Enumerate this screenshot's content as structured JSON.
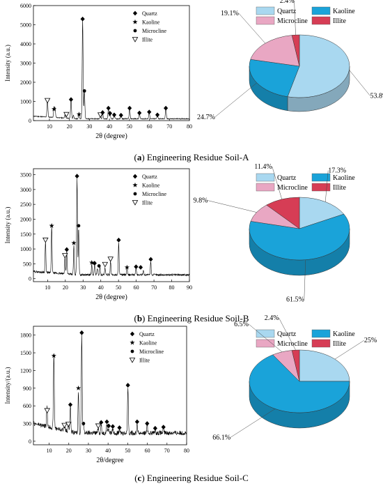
{
  "captions": [
    {
      "letter": "a",
      "text": "Engineering Residue Soil-A"
    },
    {
      "letter": "b",
      "text": "Engineering Residue Soil-B"
    },
    {
      "letter": "c",
      "text": "Engineering Residue Soil-C"
    }
  ],
  "chart_data": [
    {
      "type": "line",
      "panel": "A-xrd",
      "xlabel": "2θ (degree)",
      "ylabel": "Intensity (a.u.)",
      "xlim": [
        2,
        80
      ],
      "ylim": [
        0,
        6000
      ],
      "xticks": [
        10,
        20,
        30,
        40,
        50,
        60,
        70,
        80
      ],
      "yticks": [
        0,
        1000,
        2000,
        3000,
        4000,
        5000,
        6000
      ],
      "legend": [
        "Quartz",
        "Kaoline",
        "Microcline",
        "Illite"
      ],
      "legend_position": "top-right",
      "peaks": [
        [
          9.0,
          1050
        ],
        [
          12.3,
          600
        ],
        [
          12.8,
          580
        ],
        [
          17.8,
          260
        ],
        [
          20.8,
          1100
        ],
        [
          22.0,
          260
        ],
        [
          24.8,
          280
        ],
        [
          26.6,
          5300
        ],
        [
          27.5,
          1550
        ],
        [
          35.5,
          260
        ],
        [
          36.6,
          400
        ],
        [
          39.5,
          650
        ],
        [
          40.3,
          380
        ],
        [
          42.4,
          300
        ],
        [
          45.8,
          280
        ],
        [
          50.1,
          650
        ],
        [
          55.0,
          400
        ],
        [
          59.9,
          450
        ],
        [
          64.0,
          300
        ],
        [
          68.2,
          650
        ]
      ],
      "markers": [
        {
          "x": 9.0,
          "y": 1050,
          "m": "illite"
        },
        {
          "x": 12.3,
          "y": 600,
          "m": "kaoline"
        },
        {
          "x": 18.5,
          "y": 320,
          "m": "illite"
        },
        {
          "x": 20.8,
          "y": 1100,
          "m": "quartz"
        },
        {
          "x": 24.8,
          "y": 330,
          "m": "kaoline"
        },
        {
          "x": 26.6,
          "y": 5300,
          "m": "quartz"
        },
        {
          "x": 27.5,
          "y": 1550,
          "m": "microcline"
        },
        {
          "x": 35.5,
          "y": 300,
          "m": "illite"
        },
        {
          "x": 36.6,
          "y": 420,
          "m": "quartz"
        },
        {
          "x": 39.5,
          "y": 650,
          "m": "quartz"
        },
        {
          "x": 40.3,
          "y": 380,
          "m": "quartz"
        },
        {
          "x": 42.4,
          "y": 300,
          "m": "quartz"
        },
        {
          "x": 45.8,
          "y": 280,
          "m": "quartz"
        },
        {
          "x": 50.1,
          "y": 650,
          "m": "quartz"
        },
        {
          "x": 55.0,
          "y": 400,
          "m": "quartz"
        },
        {
          "x": 59.9,
          "y": 450,
          "m": "quartz"
        },
        {
          "x": 64.0,
          "y": 300,
          "m": "quartz"
        },
        {
          "x": 68.2,
          "y": 650,
          "m": "quartz"
        }
      ]
    },
    {
      "type": "pie",
      "panel": "A-pie",
      "labels": [
        "Quartz",
        "Kaoline",
        "Microcline",
        "Illite"
      ],
      "values": [
        53.8,
        24.7,
        19.1,
        2.4
      ],
      "value_labels": [
        "53.8%",
        "24.7%",
        "19.1%",
        "2.4%"
      ],
      "colors": [
        "#a9d8f0",
        "#1aa3d9",
        "#e9a7c3",
        "#d63d55"
      ],
      "legend_position": "top"
    },
    {
      "type": "line",
      "panel": "B-xrd",
      "xlabel": "2θ (degree)",
      "ylabel": "Intensity (a.u.)",
      "xlim": [
        2,
        90
      ],
      "ylim": [
        -100,
        3700
      ],
      "xticks": [
        10,
        20,
        30,
        40,
        50,
        60,
        70,
        80,
        90
      ],
      "yticks": [
        0,
        500,
        1000,
        1500,
        2000,
        2500,
        3000,
        3500
      ],
      "legend": [
        "Quartz",
        "Kaoline",
        "Microcline",
        "Illite"
      ],
      "legend_position": "top-right",
      "peaks": [
        [
          8.8,
          1200
        ],
        [
          12.3,
          1700
        ],
        [
          19.8,
          700
        ],
        [
          20.8,
          920
        ],
        [
          24.8,
          1100
        ],
        [
          26.6,
          3400
        ],
        [
          27.5,
          1700
        ],
        [
          34.9,
          460
        ],
        [
          36.5,
          500
        ],
        [
          38.0,
          360
        ],
        [
          39.5,
          440
        ],
        [
          42.4,
          350
        ],
        [
          45.5,
          600
        ],
        [
          50.1,
          1250
        ],
        [
          54.8,
          330
        ],
        [
          59.9,
          350
        ],
        [
          64.0,
          300
        ],
        [
          68.2,
          600
        ]
      ],
      "markers": [
        {
          "x": 8.8,
          "y": 1300,
          "m": "illite"
        },
        {
          "x": 12.3,
          "y": 1780,
          "m": "kaoline"
        },
        {
          "x": 19.8,
          "y": 780,
          "m": "illite"
        },
        {
          "x": 20.8,
          "y": 980,
          "m": "quartz"
        },
        {
          "x": 24.8,
          "y": 1200,
          "m": "kaoline"
        },
        {
          "x": 26.6,
          "y": 3450,
          "m": "quartz"
        },
        {
          "x": 27.5,
          "y": 1780,
          "m": "microcline"
        },
        {
          "x": 34.9,
          "y": 540,
          "m": "kaoline"
        },
        {
          "x": 36.5,
          "y": 520,
          "m": "quartz"
        },
        {
          "x": 39.0,
          "y": 430,
          "m": "microcline"
        },
        {
          "x": 42.4,
          "y": 480,
          "m": "illite"
        },
        {
          "x": 45.5,
          "y": 660,
          "m": "illite"
        },
        {
          "x": 50.1,
          "y": 1300,
          "m": "quartz"
        },
        {
          "x": 54.8,
          "y": 380,
          "m": "kaoline"
        },
        {
          "x": 59.9,
          "y": 400,
          "m": "quartz"
        },
        {
          "x": 62.5,
          "y": 380,
          "m": "quartz"
        },
        {
          "x": 68.2,
          "y": 650,
          "m": "quartz"
        }
      ]
    },
    {
      "type": "pie",
      "panel": "B-pie",
      "labels": [
        "Quartz",
        "Kaoline",
        "Microcline",
        "Illite"
      ],
      "values": [
        17.3,
        61.5,
        9.8,
        11.4
      ],
      "value_labels": [
        "17.3%",
        "61.5%",
        "9.8%",
        "11.4%"
      ],
      "colors": [
        "#a9d8f0",
        "#1aa3d9",
        "#e9a7c3",
        "#d63d55"
      ],
      "legend_position": "top"
    },
    {
      "type": "line",
      "panel": "C-xrd",
      "xlabel": "2θ/degree",
      "ylabel": "Intensity/(a.u.)",
      "xlim": [
        2,
        80
      ],
      "ylim": [
        -60,
        1950
      ],
      "xticks": [
        10,
        20,
        30,
        40,
        50,
        60,
        70,
        80
      ],
      "yticks": [
        0,
        300,
        600,
        900,
        1200,
        1500,
        1800
      ],
      "legend": [
        "Quartz",
        "Kaoline",
        "Microcline",
        "Illite"
      ],
      "legend_position": "top-right",
      "peaks": [
        [
          8.9,
          470
        ],
        [
          12.4,
          1400
        ],
        [
          17.8,
          240
        ],
        [
          19.8,
          260
        ],
        [
          20.8,
          580
        ],
        [
          24.9,
          850
        ],
        [
          26.6,
          1820
        ],
        [
          27.5,
          280
        ],
        [
          35.0,
          230
        ],
        [
          36.5,
          290
        ],
        [
          39.4,
          300
        ],
        [
          40.3,
          230
        ],
        [
          42.4,
          220
        ],
        [
          45.8,
          200
        ],
        [
          50.1,
          920
        ],
        [
          54.8,
          300
        ],
        [
          59.9,
          280
        ],
        [
          64.0,
          200
        ],
        [
          68.2,
          220
        ]
      ],
      "markers": [
        {
          "x": 9.0,
          "y": 520,
          "m": "illite"
        },
        {
          "x": 12.4,
          "y": 1450,
          "m": "kaoline"
        },
        {
          "x": 17.8,
          "y": 270,
          "m": "illite"
        },
        {
          "x": 19.8,
          "y": 290,
          "m": "illite"
        },
        {
          "x": 20.8,
          "y": 620,
          "m": "quartz"
        },
        {
          "x": 24.9,
          "y": 900,
          "m": "kaoline"
        },
        {
          "x": 26.6,
          "y": 1840,
          "m": "quartz"
        },
        {
          "x": 27.5,
          "y": 300,
          "m": "microcline"
        },
        {
          "x": 35.0,
          "y": 260,
          "m": "illite"
        },
        {
          "x": 36.5,
          "y": 320,
          "m": "quartz"
        },
        {
          "x": 39.4,
          "y": 330,
          "m": "quartz"
        },
        {
          "x": 40.3,
          "y": 260,
          "m": "quartz"
        },
        {
          "x": 42.4,
          "y": 250,
          "m": "quartz"
        },
        {
          "x": 45.8,
          "y": 230,
          "m": "quartz"
        },
        {
          "x": 50.1,
          "y": 950,
          "m": "quartz"
        },
        {
          "x": 54.8,
          "y": 330,
          "m": "quartz"
        },
        {
          "x": 59.9,
          "y": 300,
          "m": "quartz"
        },
        {
          "x": 64.0,
          "y": 220,
          "m": "quartz"
        },
        {
          "x": 68.2,
          "y": 240,
          "m": "quartz"
        }
      ]
    },
    {
      "type": "pie",
      "panel": "C-pie",
      "labels": [
        "Quartz",
        "Kaoline",
        "Microcline",
        "Illite"
      ],
      "values": [
        25,
        66.1,
        6.5,
        2.4
      ],
      "value_labels": [
        "25%",
        "66.1%",
        "6.5%",
        "2.4%"
      ],
      "colors": [
        "#a9d8f0",
        "#1aa3d9",
        "#e9a7c3",
        "#d63d55"
      ],
      "legend_position": "top"
    }
  ]
}
